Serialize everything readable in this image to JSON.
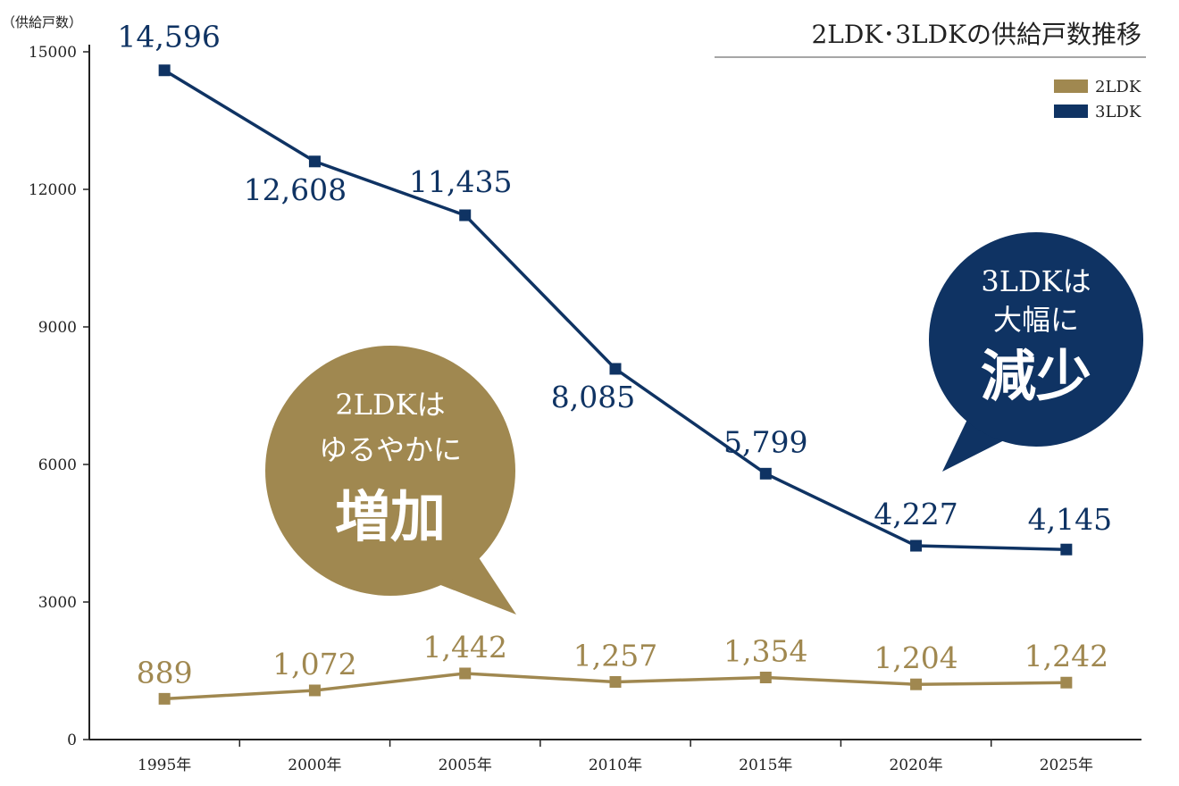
{
  "chart_data": {
    "type": "line",
    "title": "2LDK･3LDKの供給戸数推移",
    "ylabel": "（供給戸数）",
    "xlabel": "",
    "categories": [
      "1995年",
      "2000年",
      "2005年",
      "2010年",
      "2015年",
      "2020年",
      "2025年"
    ],
    "ylim": [
      0,
      15000
    ],
    "yticks": [
      "0",
      "3000",
      "6000",
      "9000",
      "12000",
      "15000"
    ],
    "ytick_values": [
      0,
      3000,
      6000,
      9000,
      12000,
      15000
    ],
    "grid": false,
    "legend_position": "top-right",
    "series": [
      {
        "name": "2LDK",
        "color": "#a08850",
        "values": [
          889,
          1072,
          1442,
          1257,
          1354,
          1204,
          1242
        ],
        "labels": [
          "889",
          "1,072",
          "1,442",
          "1,257",
          "1,354",
          "1,204",
          "1,242"
        ]
      },
      {
        "name": "3LDK",
        "color": "#0f3363",
        "values": [
          14596,
          12608,
          11435,
          8085,
          5799,
          4227,
          4145
        ],
        "labels": [
          "14,596",
          "12,608",
          "11,435",
          "8,085",
          "5,799",
          "4,227",
          "4,145"
        ]
      }
    ],
    "annotations": [
      {
        "series": "2LDK",
        "color": "#a08850",
        "line1": "2LDKは",
        "line2": "ゆるやかに",
        "emphasis": "増加"
      },
      {
        "series": "3LDK",
        "color": "#0f3363",
        "line1": "3LDKは",
        "line2": "大幅に",
        "emphasis": "減少"
      }
    ]
  }
}
